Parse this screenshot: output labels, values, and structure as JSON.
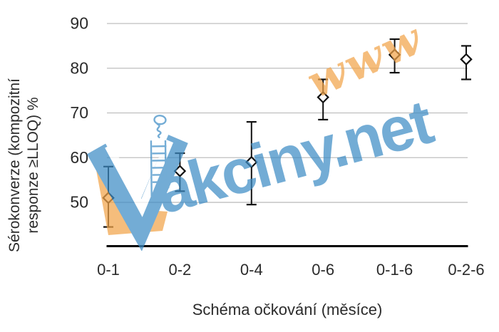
{
  "chart_data": {
    "type": "scatter",
    "title": "",
    "xlabel": "Schéma očkování (měsíce)",
    "ylabel_line1": "Sérokonverze (kompozitní",
    "ylabel_line2": "responze ≥LLOQ) %",
    "categories": [
      "0-1",
      "0-2",
      "0-4",
      "0-6",
      "0-1-6",
      "0-2-6"
    ],
    "values": [
      51,
      57,
      59,
      73.5,
      83,
      82
    ],
    "ci_low": [
      44.5,
      52.5,
      49.5,
      68.5,
      79,
      77.5
    ],
    "ci_high": [
      58,
      61,
      68,
      77.5,
      86.5,
      85
    ],
    "ylim": [
      40,
      90
    ],
    "yticks": [
      50,
      60,
      70,
      80,
      90
    ],
    "grid": "horizontal-only",
    "legend": "none",
    "marker": "open-diamond-with-error-bars",
    "colors": {
      "marker_stroke": "#111111",
      "marker_fill": "#ffffff",
      "errorbar": "#111111",
      "gridline": "#bfbfbf",
      "axis_line": "#000000",
      "text": "#2b2b2b"
    }
  },
  "watermark": {
    "www_text": "www",
    "domain_text": "akciny.net",
    "logo": "blue-checkmark-v-with-orange-shadow-and-syringe",
    "blue": "#3E8DC5",
    "orange": "#F2A54A",
    "opacity": 0.72
  }
}
